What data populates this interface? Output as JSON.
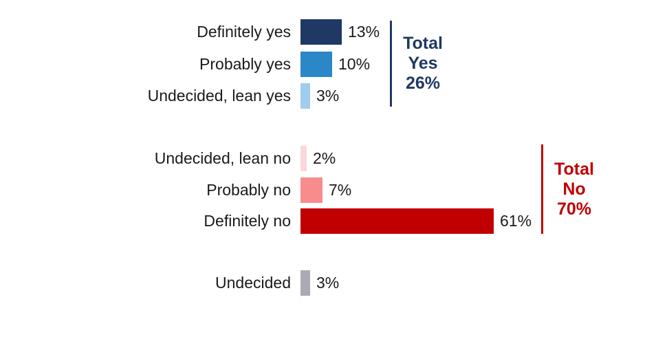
{
  "chart_data": {
    "type": "bar",
    "orientation": "horizontal",
    "title": "",
    "xlabel": "",
    "ylabel": "",
    "unit": "percent",
    "xlim": [
      0,
      65
    ],
    "grid": false,
    "legend": null,
    "categories": [
      "Definitely yes",
      "Probably yes",
      "Undecided, lean yes",
      "Undecided, lean no",
      "Probably no",
      "Definitely no",
      "Undecided"
    ],
    "values": [
      13,
      10,
      3,
      2,
      7,
      61,
      3
    ],
    "rows": [
      {
        "label": "Definitely yes",
        "value": 13,
        "value_label": "13%",
        "color": "#1F3864",
        "group": "yes"
      },
      {
        "label": "Probably yes",
        "value": 10,
        "value_label": "10%",
        "color": "#2B87C8",
        "group": "yes"
      },
      {
        "label": "Undecided, lean yes",
        "value": 3,
        "value_label": "3%",
        "color": "#A0CDEF",
        "group": "yes"
      },
      {
        "label": "Undecided, lean no",
        "value": 2,
        "value_label": "2%",
        "color": "#FAD7DA",
        "group": "no"
      },
      {
        "label": "Probably no",
        "value": 7,
        "value_label": "7%",
        "color": "#F88C8C",
        "group": "no"
      },
      {
        "label": "Definitely no",
        "value": 61,
        "value_label": "61%",
        "color": "#C00000",
        "group": "no"
      },
      {
        "label": "Undecided",
        "value": 3,
        "value_label": "3%",
        "color": "#AAAAB4",
        "group": "undecided"
      }
    ],
    "annotations": [
      {
        "name": "total-yes",
        "lines": [
          "Total",
          "Yes",
          "26%"
        ],
        "total_value": 26,
        "color": "#1F3864"
      },
      {
        "name": "total-no",
        "lines": [
          "Total",
          "No",
          "70%"
        ],
        "total_value": 70,
        "color": "#C00000"
      }
    ]
  },
  "colors": {
    "background": "#FFFFFF",
    "text": "#1A1A1A",
    "total_yes_accent": "#1F3864",
    "total_no_accent": "#C00000"
  }
}
